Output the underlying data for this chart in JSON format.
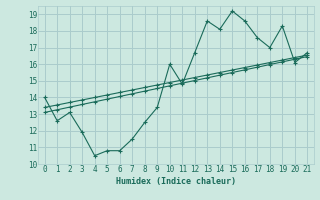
{
  "background_color": "#cce8e0",
  "grid_color": "#aacccc",
  "line_color": "#1a6b5a",
  "xlabel": "Humidex (Indice chaleur)",
  "xlim": [
    -0.5,
    21.5
  ],
  "ylim": [
    10,
    19.5
  ],
  "xticks": [
    0,
    1,
    2,
    3,
    4,
    5,
    6,
    7,
    8,
    9,
    10,
    11,
    12,
    13,
    14,
    15,
    16,
    17,
    18,
    19,
    20,
    21
  ],
  "yticks": [
    10,
    11,
    12,
    13,
    14,
    15,
    16,
    17,
    18,
    19
  ],
  "series": [
    {
      "x": [
        0,
        1,
        2,
        3,
        4,
        5,
        6,
        7,
        8,
        9,
        10,
        11,
        12,
        13,
        14,
        15,
        16,
        17,
        18,
        19,
        20,
        21
      ],
      "y": [
        14.0,
        12.6,
        13.1,
        11.9,
        10.5,
        10.8,
        10.8,
        11.5,
        12.5,
        13.4,
        16.0,
        14.8,
        16.7,
        18.6,
        18.1,
        19.2,
        18.6,
        17.6,
        17.0,
        18.3,
        16.1,
        16.7
      ]
    },
    {
      "x": [
        0,
        1,
        2,
        3,
        4,
        5,
        6,
        7,
        8,
        9,
        10,
        11,
        12,
        13,
        14,
        15,
        16,
        17,
        18,
        19,
        20,
        21
      ],
      "y": [
        13.1,
        13.26,
        13.42,
        13.58,
        13.74,
        13.9,
        14.06,
        14.22,
        14.38,
        14.54,
        14.7,
        14.86,
        15.02,
        15.18,
        15.34,
        15.5,
        15.66,
        15.82,
        15.98,
        16.14,
        16.3,
        16.46
      ]
    },
    {
      "x": [
        0,
        1,
        2,
        3,
        4,
        5,
        6,
        7,
        8,
        9,
        10,
        11,
        12,
        13,
        14,
        15,
        16,
        17,
        18,
        19,
        20,
        21
      ],
      "y": [
        13.4,
        13.55,
        13.7,
        13.85,
        14.0,
        14.15,
        14.3,
        14.45,
        14.6,
        14.75,
        14.9,
        15.05,
        15.2,
        15.35,
        15.5,
        15.65,
        15.8,
        15.95,
        16.1,
        16.25,
        16.4,
        16.55
      ]
    }
  ]
}
